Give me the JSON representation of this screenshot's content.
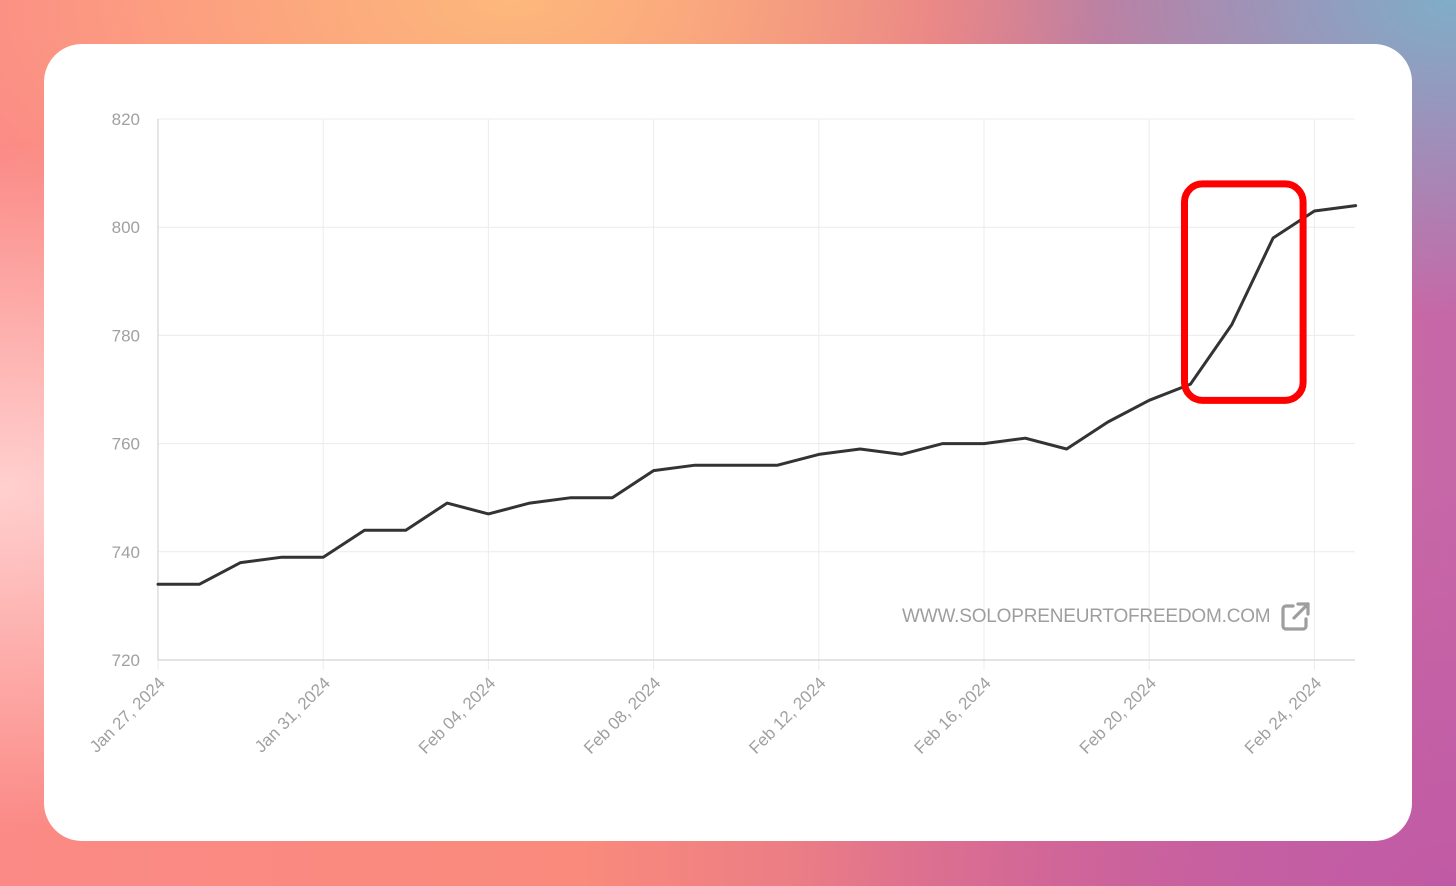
{
  "chart_data": {
    "type": "line",
    "title": "",
    "xlabel": "",
    "ylabel": "",
    "ylim": [
      720,
      820
    ],
    "yticks": [
      "820",
      "800",
      "780",
      "760",
      "740",
      "720"
    ],
    "xticks": [
      "Jan 27, 2024",
      "Jan 31, 2024",
      "Feb 04, 2024",
      "Feb 08, 2024",
      "Feb 12, 2024",
      "Feb 16, 2024",
      "Feb 20, 2024",
      "Feb 24, 2024"
    ],
    "grid": true,
    "line_color": "#333333",
    "highlight_color": "#ff0000",
    "highlight": {
      "x_from": "Feb 21, 2024",
      "x_to": "Feb 23, 2024",
      "y_from": 768,
      "y_to": 808
    },
    "series": [
      {
        "x": [
          "2024-01-27",
          "2024-01-28",
          "2024-01-29",
          "2024-01-30",
          "2024-01-31",
          "2024-02-01",
          "2024-02-02",
          "2024-02-03",
          "2024-02-04",
          "2024-02-05",
          "2024-02-06",
          "2024-02-07",
          "2024-02-08",
          "2024-02-09",
          "2024-02-10",
          "2024-02-11",
          "2024-02-12",
          "2024-02-13",
          "2024-02-14",
          "2024-02-15",
          "2024-02-16",
          "2024-02-17",
          "2024-02-18",
          "2024-02-19",
          "2024-02-20",
          "2024-02-21",
          "2024-02-22",
          "2024-02-23",
          "2024-02-24",
          "2024-02-25"
        ],
        "values": [
          734,
          734,
          738,
          739,
          739,
          744,
          744,
          749,
          747,
          749,
          750,
          750,
          755,
          756,
          756,
          756,
          758,
          759,
          758,
          760,
          760,
          761,
          759,
          764,
          768,
          771,
          782,
          798,
          803,
          804
        ]
      }
    ]
  },
  "watermark": {
    "text": "WWW.SOLOPRENEURTOFREEDOM.COM",
    "icon": "external-link-icon"
  }
}
